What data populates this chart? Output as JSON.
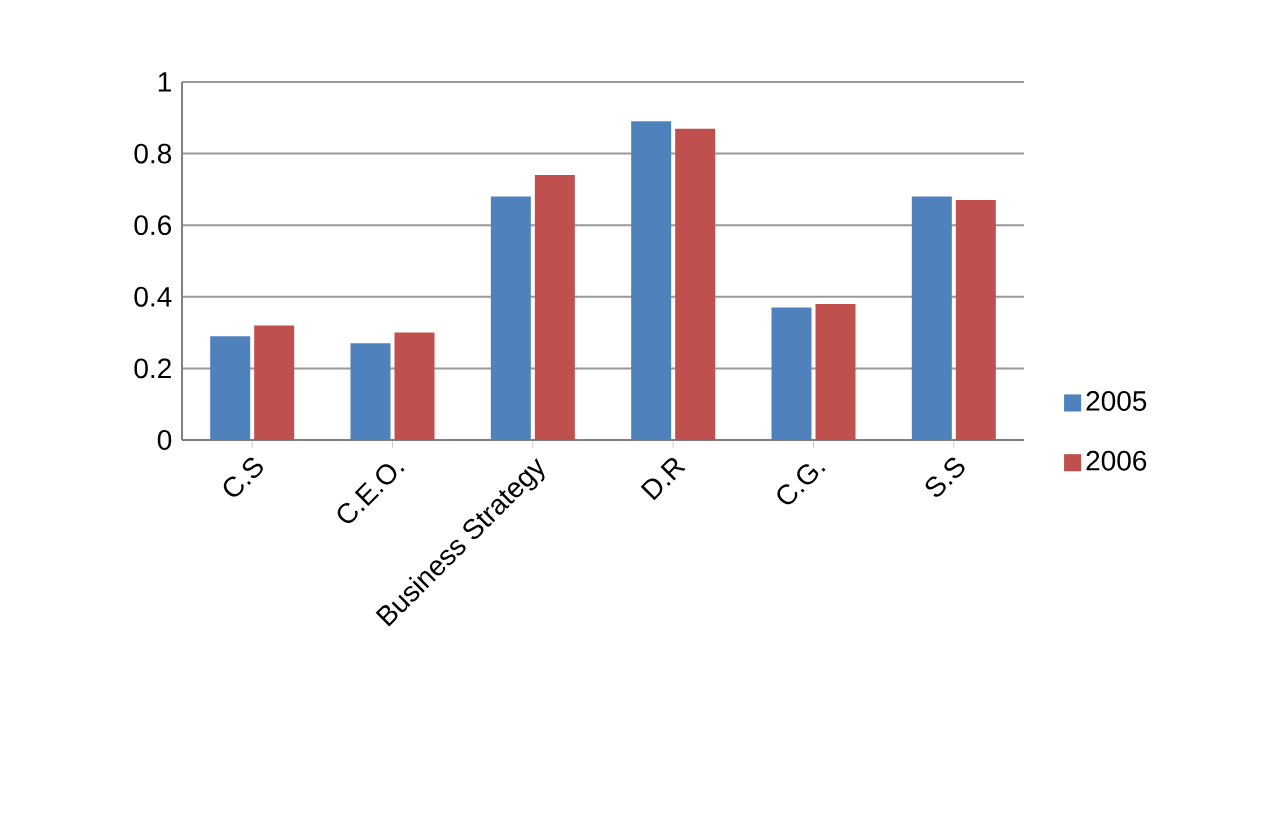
{
  "chart_data": {
    "type": "bar",
    "categories": [
      "C.S",
      "C.E.O.",
      "Business Strategy",
      "D.R",
      "C.G.",
      "S.S"
    ],
    "series": [
      {
        "name": "2005",
        "color": "#4f81bd",
        "values": [
          0.29,
          0.27,
          0.68,
          0.89,
          0.37,
          0.68
        ]
      },
      {
        "name": "2006",
        "color": "#c0504d",
        "values": [
          0.32,
          0.3,
          0.74,
          0.87,
          0.38,
          0.67
        ]
      }
    ],
    "ylim": [
      0,
      1
    ],
    "yticks": [
      0,
      0.2,
      0.4,
      0.6,
      0.8,
      1
    ],
    "grid": "y",
    "legend": "right"
  }
}
